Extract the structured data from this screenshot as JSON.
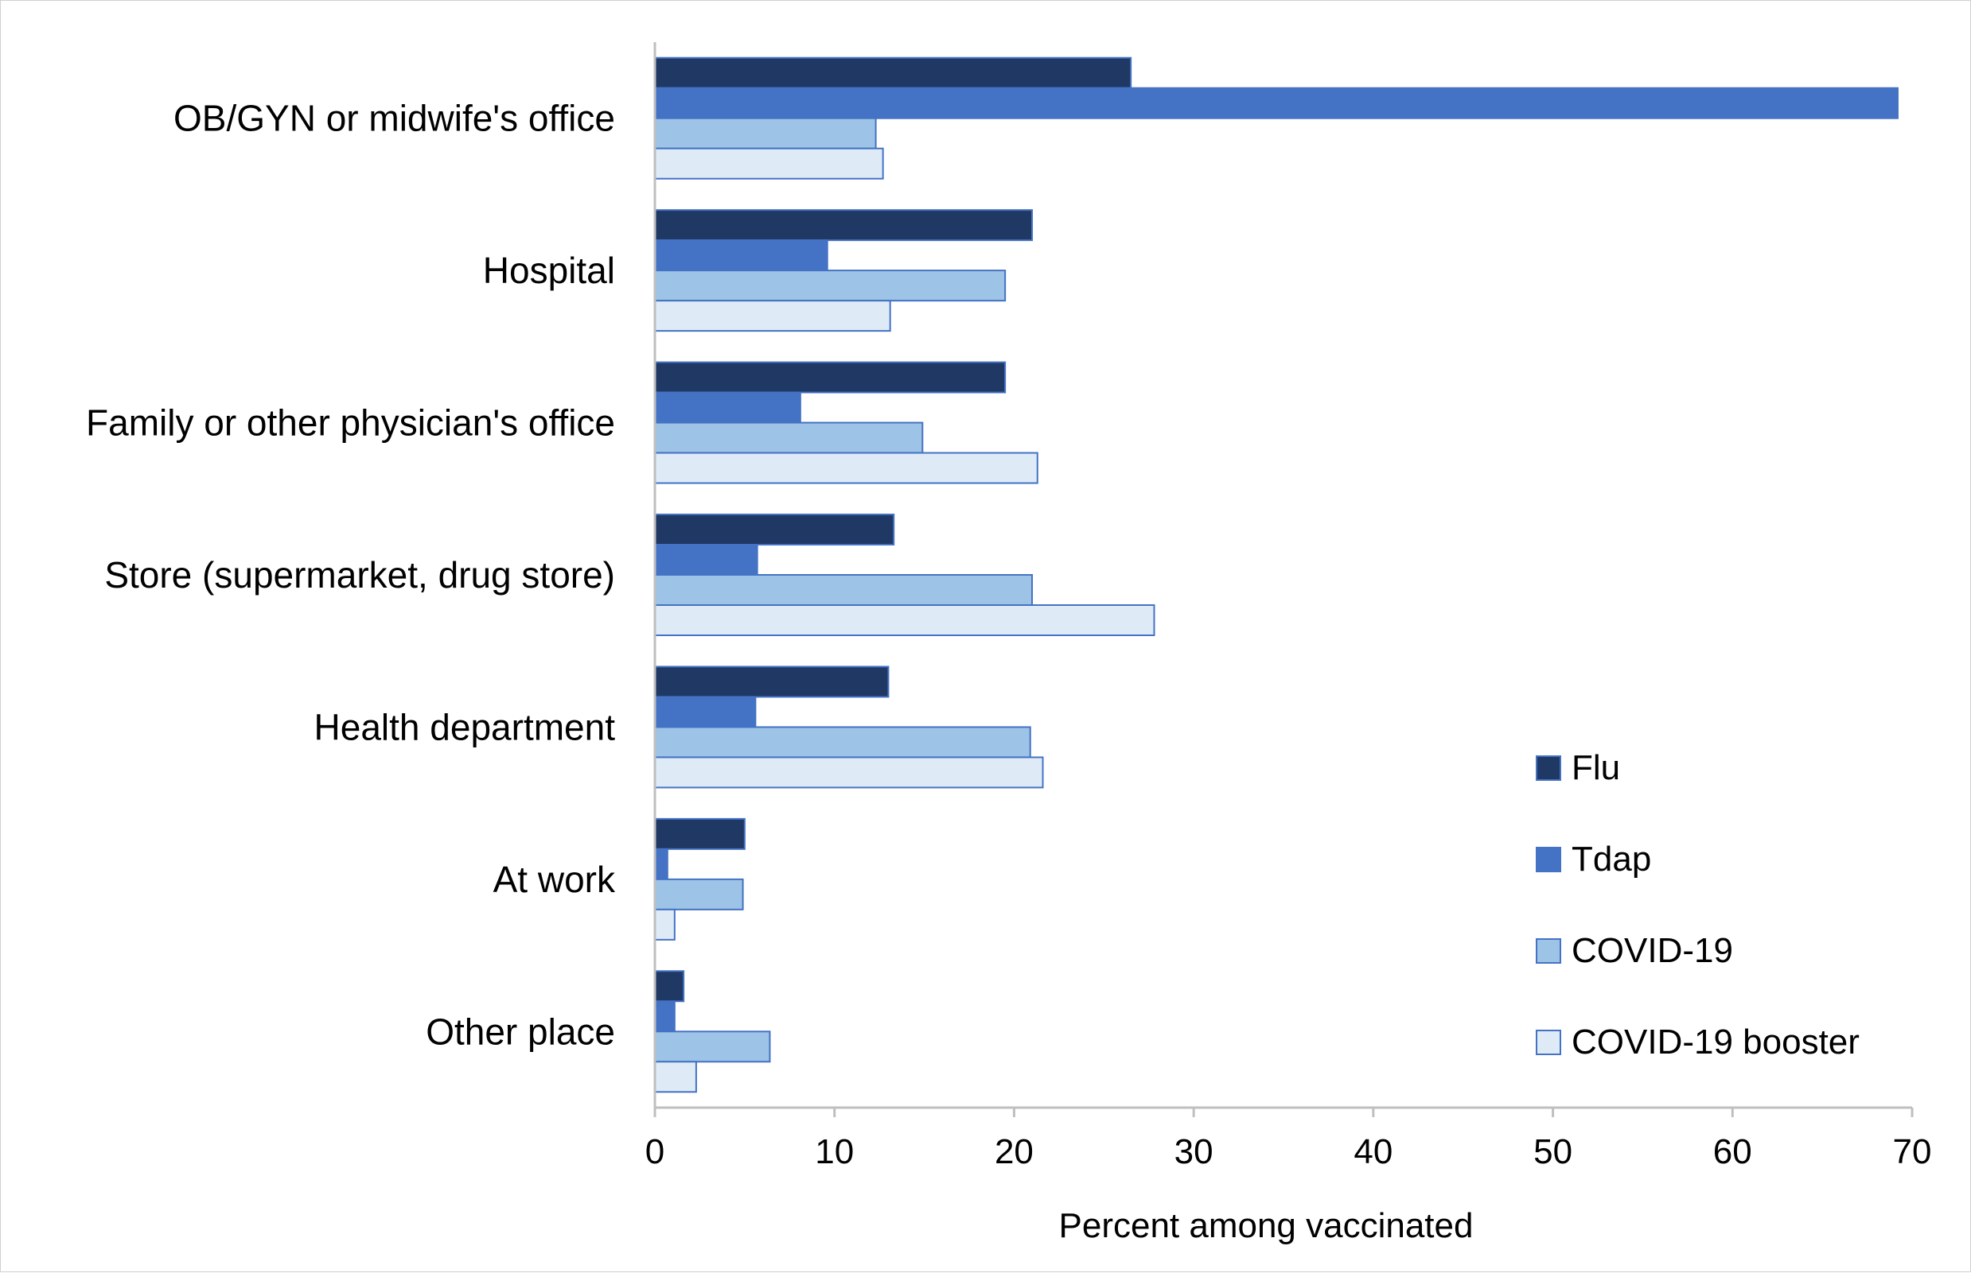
{
  "chart_data": {
    "type": "bar",
    "orientation": "horizontal",
    "title": "",
    "xlabel": "Percent among vaccinated",
    "ylabel": "",
    "xlim": [
      0,
      70
    ],
    "x_ticks": [
      0,
      10,
      20,
      30,
      40,
      50,
      60,
      70
    ],
    "grid": false,
    "legend_position": "bottom-right",
    "categories": [
      "OB/GYN or midwife's office",
      "Hospital",
      "Family or other physician's office",
      "Store (supermarket, drug store)",
      "Health department",
      "At work",
      "Other place"
    ],
    "series": [
      {
        "name": "Flu",
        "color": "#203864",
        "values": [
          26.5,
          21.0,
          19.5,
          13.3,
          13.0,
          5.0,
          1.6
        ]
      },
      {
        "name": "Tdap",
        "color": "#4472C4",
        "values": [
          69.2,
          9.6,
          8.1,
          5.7,
          5.6,
          0.7,
          1.1
        ]
      },
      {
        "name": "COVID-19",
        "color": "#9DC3E6",
        "values": [
          12.3,
          19.5,
          14.9,
          21.0,
          20.9,
          4.9,
          6.4
        ]
      },
      {
        "name": "COVID-19 booster",
        "color": "#DEEBF7",
        "values": [
          12.7,
          13.1,
          21.3,
          27.8,
          21.6,
          1.1,
          2.3
        ]
      }
    ],
    "bar_border_color": "#4472C4",
    "axis_color": "#bfbfbf"
  }
}
